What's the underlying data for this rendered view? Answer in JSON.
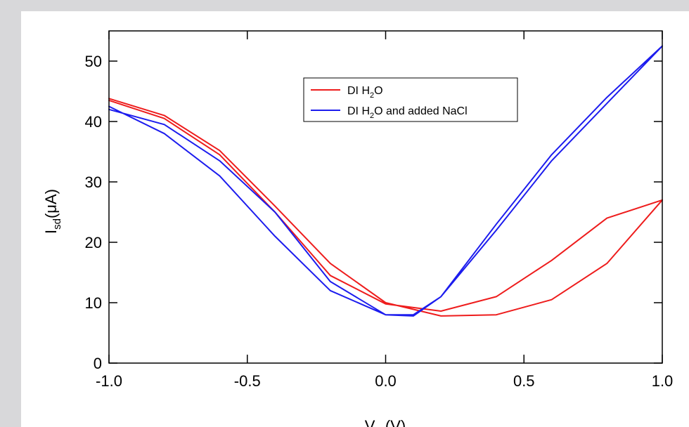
{
  "chart_data": {
    "type": "line",
    "title": "",
    "xlabel": "V_g (V)",
    "ylabel": "I_sd(μA)",
    "xlim": [
      -1.0,
      1.0
    ],
    "ylim": [
      0,
      55
    ],
    "x_ticks": [
      "-1.0",
      "-0.5",
      "0.0",
      "0.5",
      "1.0"
    ],
    "y_ticks": [
      "0",
      "10",
      "20",
      "30",
      "40",
      "50"
    ],
    "grid": false,
    "legend_position": "top-center",
    "series": [
      {
        "name": "DI H2O",
        "color": "#ee1c1c",
        "x": [
          -1.0,
          -0.8,
          -0.6,
          -0.4,
          -0.2,
          0.0,
          0.2,
          0.4,
          0.6,
          0.8,
          1.0,
          0.8,
          0.6,
          0.4,
          0.2,
          0.0,
          -0.2,
          -0.4,
          -0.6,
          -0.8,
          -1.0
        ],
        "y": [
          43.8,
          41.0,
          35.2,
          26.0,
          16.5,
          10.0,
          7.8,
          8.0,
          10.5,
          16.5,
          27.0,
          24.0,
          17.0,
          11.0,
          8.6,
          9.8,
          14.5,
          25.0,
          34.5,
          40.5,
          43.5
        ]
      },
      {
        "name": "DI H2O and added NaCl",
        "color": "#1c1cee",
        "x": [
          -1.0,
          -0.8,
          -0.6,
          -0.4,
          -0.2,
          0.0,
          0.1,
          0.2,
          0.4,
          0.6,
          0.8,
          1.0,
          0.8,
          0.6,
          0.4,
          0.2,
          0.1,
          0.0,
          -0.2,
          -0.4,
          -0.6,
          -0.8,
          -1.0
        ],
        "y": [
          42.5,
          38.0,
          31.0,
          21.0,
          12.0,
          8.0,
          7.8,
          11.0,
          23.0,
          34.5,
          44.0,
          52.5,
          43.0,
          33.5,
          22.0,
          11.0,
          8.0,
          8.0,
          13.5,
          25.0,
          33.5,
          39.5,
          42.0
        ]
      }
    ],
    "legend": {
      "entries": [
        {
          "label_main": "DI H",
          "label_sub": "2",
          "label_end": "O"
        },
        {
          "label_main": "DI H",
          "label_sub": "2",
          "label_end": "O and added NaCl"
        }
      ]
    }
  }
}
